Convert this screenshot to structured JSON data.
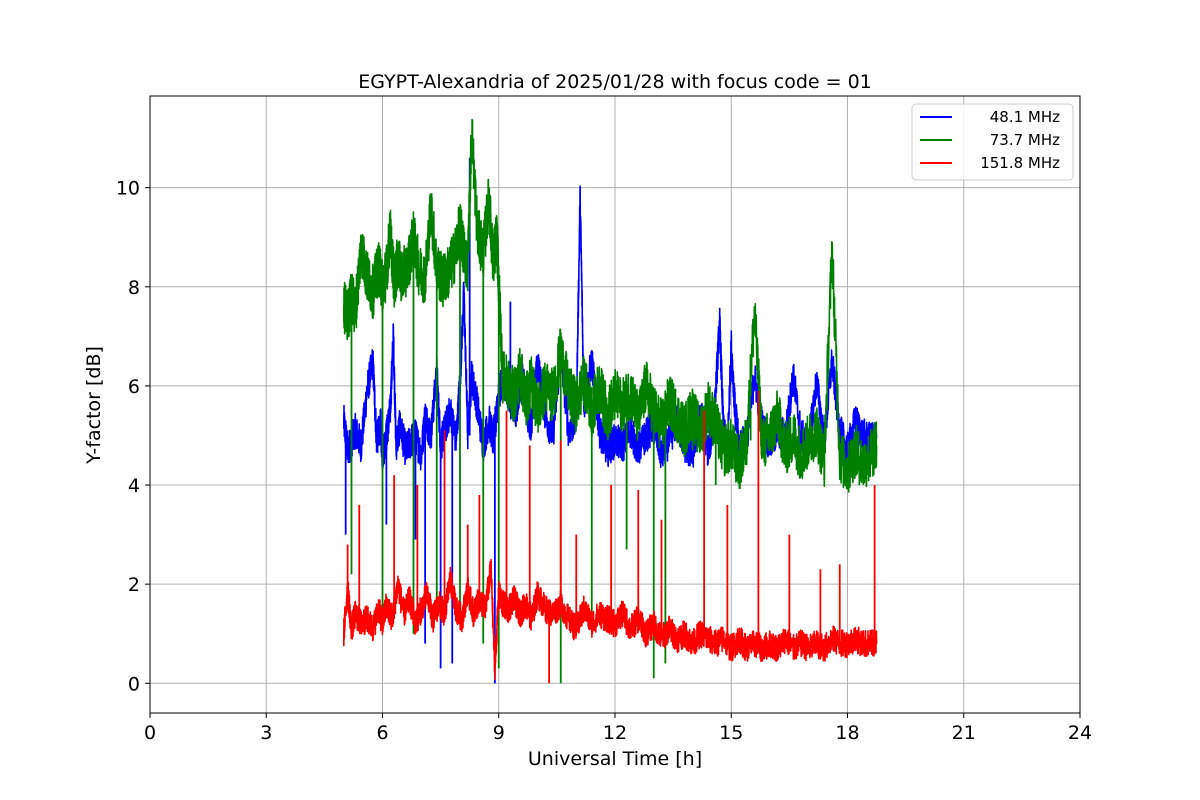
{
  "chart_data": {
    "type": "line",
    "title": "EGYPT-Alexandria of 2025/01/28 with focus code = 01",
    "xlabel": "Universal Time [h]",
    "ylabel": "Y-factor [dB]",
    "xlim": [
      0,
      24
    ],
    "ylim": [
      -0.6,
      11.85
    ],
    "x_ticks": [
      0,
      3,
      6,
      9,
      12,
      15,
      18,
      21,
      24
    ],
    "y_ticks": [
      0,
      2,
      4,
      6,
      8,
      10
    ],
    "grid": true,
    "legend_position": "top-right",
    "series": [
      {
        "name": "48.1 MHz",
        "color": "#0000ff",
        "x": [
          5.0,
          5.1,
          5.2,
          5.3,
          5.45,
          5.6,
          5.75,
          5.85,
          5.95,
          6.0,
          6.1,
          6.2,
          6.28,
          6.35,
          6.45,
          6.6,
          6.75,
          6.85,
          7.0,
          7.1,
          7.25,
          7.4,
          7.5,
          7.6,
          7.75,
          7.9,
          8.0,
          8.1,
          8.2,
          8.3,
          8.45,
          8.6,
          8.75,
          8.85,
          8.9,
          9.0,
          9.1,
          9.2,
          9.3,
          9.45,
          9.6,
          9.75,
          9.85,
          10.0,
          10.2,
          10.4,
          10.6,
          10.8,
          11.0,
          11.1,
          11.2,
          11.4,
          11.6,
          11.8,
          12.0,
          12.2,
          12.4,
          12.6,
          12.8,
          13.0,
          13.2,
          13.4,
          13.6,
          13.8,
          14.0,
          14.2,
          14.4,
          14.55,
          14.7,
          14.8,
          14.9,
          15.0,
          15.1,
          15.2,
          15.4,
          15.6,
          15.8,
          16.0,
          16.2,
          16.4,
          16.6,
          16.8,
          17.0,
          17.2,
          17.4,
          17.6,
          17.8,
          18.0,
          18.2,
          18.4,
          18.6,
          18.75
        ],
        "y": [
          5.3,
          4.7,
          4.9,
          5.1,
          4.8,
          5.9,
          6.5,
          4.9,
          5.2,
          4.6,
          5.0,
          5.5,
          7.0,
          4.8,
          5.2,
          4.7,
          4.9,
          5.0,
          4.6,
          5.4,
          5.0,
          6.3,
          4.8,
          5.1,
          5.5,
          4.9,
          6.1,
          7.9,
          5.0,
          6.2,
          5.6,
          4.8,
          5.3,
          4.9,
          5.2,
          5.8,
          6.2,
          6.0,
          5.7,
          5.5,
          6.3,
          5.4,
          5.2,
          6.5,
          5.4,
          5.0,
          6.7,
          5.1,
          5.3,
          9.8,
          5.6,
          6.5,
          5.1,
          4.7,
          4.9,
          4.8,
          5.1,
          4.7,
          5.0,
          5.2,
          4.6,
          4.9,
          5.3,
          4.8,
          4.6,
          5.5,
          4.7,
          5.2,
          7.3,
          5.1,
          4.7,
          6.8,
          5.5,
          4.8,
          4.9,
          6.2,
          5.2,
          4.8,
          5.1,
          5.0,
          6.2,
          5.0,
          4.8,
          6.1,
          4.9,
          6.5,
          5.1,
          4.7,
          5.3,
          5.0,
          4.9,
          5.0
        ]
      },
      {
        "name": "73.7 MHz",
        "color": "#008000",
        "x": [
          5.0,
          5.1,
          5.2,
          5.3,
          5.45,
          5.6,
          5.75,
          5.9,
          6.0,
          6.1,
          6.2,
          6.3,
          6.4,
          6.5,
          6.65,
          6.8,
          6.95,
          7.1,
          7.25,
          7.4,
          7.55,
          7.7,
          7.85,
          8.0,
          8.1,
          8.2,
          8.3,
          8.45,
          8.6,
          8.75,
          8.85,
          8.95,
          9.0,
          9.1,
          9.25,
          9.4,
          9.55,
          9.7,
          9.85,
          10.0,
          10.2,
          10.4,
          10.6,
          10.8,
          11.0,
          11.2,
          11.4,
          11.6,
          11.8,
          12.0,
          12.2,
          12.4,
          12.6,
          12.8,
          13.0,
          13.2,
          13.4,
          13.6,
          13.8,
          14.0,
          14.2,
          14.4,
          14.6,
          14.8,
          15.0,
          15.2,
          15.4,
          15.6,
          15.8,
          16.0,
          16.2,
          16.4,
          16.6,
          16.8,
          17.0,
          17.2,
          17.4,
          17.6,
          17.8,
          18.0,
          18.2,
          18.4,
          18.6,
          18.75
        ],
        "y": [
          7.6,
          7.4,
          7.8,
          7.5,
          8.8,
          8.2,
          7.9,
          8.4,
          8.0,
          8.3,
          9.1,
          8.1,
          8.5,
          8.2,
          8.4,
          9.0,
          8.3,
          8.2,
          9.6,
          8.4,
          8.1,
          8.3,
          8.6,
          9.2,
          8.7,
          8.4,
          11.2,
          9.1,
          8.7,
          9.8,
          8.5,
          9.0,
          8.1,
          6.2,
          6.0,
          5.8,
          6.3,
          5.7,
          6.1,
          5.5,
          6.0,
          5.8,
          6.7,
          5.9,
          5.6,
          6.1,
          5.5,
          6.0,
          5.4,
          5.8,
          5.6,
          5.9,
          5.3,
          6.0,
          5.5,
          5.2,
          5.7,
          5.4,
          5.1,
          5.5,
          5.0,
          5.6,
          5.2,
          4.7,
          4.8,
          4.4,
          4.9,
          7.5,
          4.8,
          5.0,
          5.4,
          4.7,
          5.0,
          4.6,
          4.9,
          5.1,
          4.5,
          8.8,
          4.6,
          4.3,
          4.7,
          4.4,
          4.6,
          4.8
        ]
      },
      {
        "name": "151.8 MHz",
        "color": "#ff0000",
        "x": [
          5.0,
          5.1,
          5.2,
          5.3,
          5.45,
          5.6,
          5.75,
          5.9,
          6.0,
          6.1,
          6.25,
          6.4,
          6.55,
          6.7,
          6.85,
          7.0,
          7.15,
          7.3,
          7.45,
          7.6,
          7.75,
          7.9,
          8.05,
          8.2,
          8.35,
          8.5,
          8.65,
          8.8,
          8.9,
          9.0,
          9.1,
          9.25,
          9.4,
          9.55,
          9.7,
          9.85,
          10.0,
          10.2,
          10.4,
          10.6,
          10.8,
          11.0,
          11.2,
          11.4,
          11.6,
          11.8,
          12.0,
          12.2,
          12.4,
          12.6,
          12.8,
          13.0,
          13.2,
          13.4,
          13.6,
          13.8,
          14.0,
          14.2,
          14.4,
          14.6,
          14.8,
          15.0,
          15.2,
          15.4,
          15.6,
          15.8,
          16.0,
          16.2,
          16.4,
          16.6,
          16.8,
          17.0,
          17.2,
          17.4,
          17.6,
          17.8,
          18.0,
          18.2,
          18.4,
          18.6,
          18.75
        ],
        "y": [
          1.0,
          1.9,
          1.1,
          1.4,
          1.2,
          1.3,
          1.1,
          1.5,
          1.2,
          1.6,
          1.3,
          2.0,
          1.4,
          1.7,
          1.2,
          1.5,
          1.8,
          1.3,
          1.6,
          1.4,
          2.1,
          1.5,
          1.3,
          1.9,
          1.4,
          1.7,
          1.5,
          2.3,
          0.3,
          1.8,
          1.6,
          1.5,
          1.7,
          1.4,
          1.6,
          1.3,
          1.8,
          1.5,
          1.4,
          1.6,
          1.3,
          1.1,
          1.5,
          1.2,
          1.4,
          1.3,
          1.2,
          1.4,
          1.1,
          1.3,
          1.0,
          1.2,
          0.9,
          1.1,
          0.9,
          1.0,
          0.8,
          1.0,
          0.9,
          0.8,
          0.9,
          0.7,
          0.9,
          0.7,
          0.8,
          0.7,
          0.8,
          0.7,
          0.9,
          0.7,
          0.8,
          0.7,
          0.8,
          0.7,
          0.9,
          0.8,
          0.8,
          0.9,
          0.8,
          0.8,
          0.8
        ]
      }
    ],
    "spikes": {
      "48.1 MHz": [
        [
          5.05,
          3.0
        ],
        [
          6.1,
          3.2
        ],
        [
          6.85,
          2.9
        ],
        [
          7.1,
          0.8
        ],
        [
          7.5,
          0.3
        ],
        [
          7.8,
          0.4
        ],
        [
          8.25,
          10.6
        ],
        [
          8.9,
          0.0
        ],
        [
          9.3,
          7.7
        ],
        [
          11.1,
          9.8
        ],
        [
          15.6,
          5.9
        ]
      ],
      "73.7 MHz": [
        [
          5.2,
          2.2
        ],
        [
          6.0,
          1.2
        ],
        [
          6.8,
          1.0
        ],
        [
          7.4,
          1.3
        ],
        [
          8.0,
          1.4
        ],
        [
          8.6,
          0.8
        ],
        [
          9.0,
          0.3
        ],
        [
          10.6,
          0.0
        ],
        [
          11.4,
          1.3
        ],
        [
          12.3,
          2.7
        ],
        [
          13.0,
          0.1
        ],
        [
          13.3,
          0.4
        ],
        [
          14.0,
          4.7
        ],
        [
          14.6,
          4.0
        ],
        [
          15.5,
          5.5
        ],
        [
          17.4,
          4.1
        ]
      ],
      "151.8 MHz": [
        [
          5.1,
          2.8
        ],
        [
          5.4,
          3.6
        ],
        [
          6.3,
          4.2
        ],
        [
          6.9,
          4.0
        ],
        [
          7.6,
          5.1
        ],
        [
          8.2,
          3.2
        ],
        [
          8.5,
          3.8
        ],
        [
          9.2,
          5.5
        ],
        [
          9.8,
          4.8
        ],
        [
          10.3,
          0.0
        ],
        [
          10.6,
          4.9
        ],
        [
          11.0,
          3.0
        ],
        [
          11.9,
          4.0
        ],
        [
          12.6,
          3.9
        ],
        [
          13.2,
          3.3
        ],
        [
          14.3,
          5.5
        ],
        [
          14.9,
          3.6
        ],
        [
          15.7,
          5.9
        ],
        [
          16.5,
          3.0
        ],
        [
          17.3,
          2.3
        ],
        [
          17.8,
          2.4
        ],
        [
          18.7,
          4.0
        ]
      ]
    }
  }
}
